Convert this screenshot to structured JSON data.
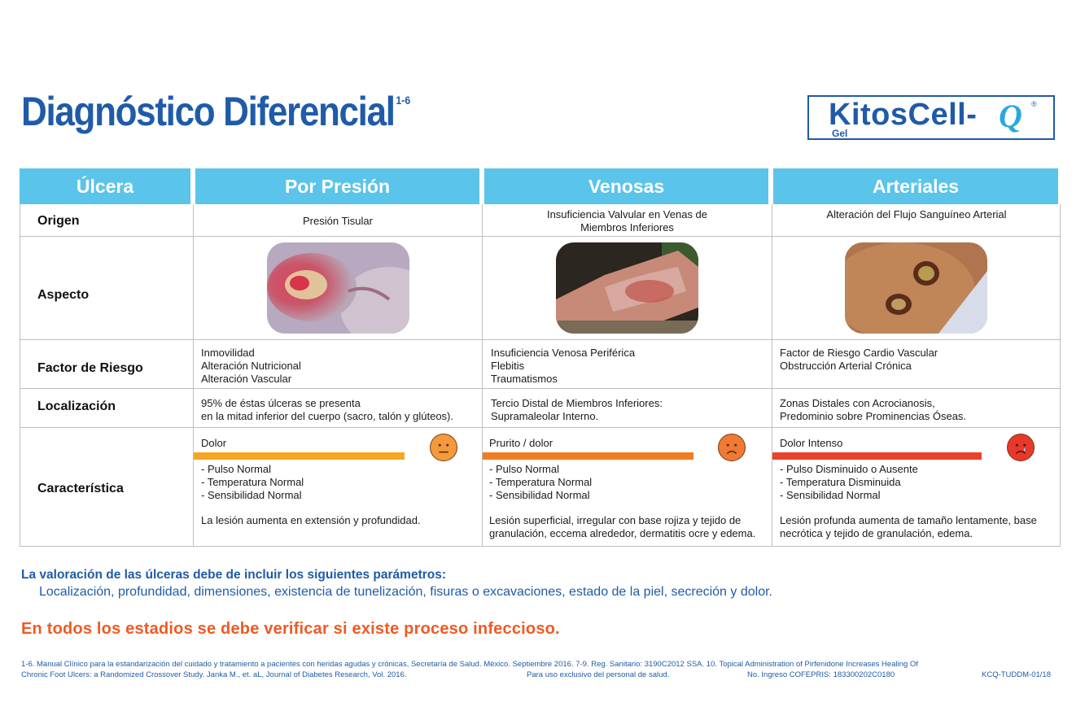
{
  "title": {
    "text": "Diagnóstico Diferencial",
    "sup": "1-6"
  },
  "logo": {
    "brand": "KitosCell-",
    "q": "Q",
    "reg": "®",
    "gel": "Gel"
  },
  "table": {
    "headers": [
      "Úlcera",
      "Por Presión",
      "Venosas",
      "Arteriales"
    ],
    "rows": {
      "origen": {
        "label": "Origen",
        "presion": "Presión Tisular",
        "venosas": [
          "Insuficiencia Valvular en Venas de",
          "Miembros Inferiores"
        ],
        "arteriales": "Alteración del Flujo Sanguíneo Arterial"
      },
      "aspecto": {
        "label": "Aspecto"
      },
      "factor": {
        "label": "Factor de Riesgo",
        "presion": [
          "Inmovilidad",
          "Alteración Nutricional",
          "Alteración Vascular"
        ],
        "venosas": [
          "Insuficiencia Venosa Periférica",
          "Flebitis",
          "Traumatismos"
        ],
        "arteriales": [
          "Factor de Riesgo Cardio Vascular",
          "Obstrucción Arterial Crónica"
        ]
      },
      "localizacion": {
        "label": "Localización",
        "presion": [
          "95% de éstas úlceras se presenta",
          "en la mitad inferior del cuerpo (sacro, talón y glúteos)."
        ],
        "venosas": [
          "Tercio Distal de Miembros Inferiores:",
          "Supramaleolar Interno."
        ],
        "arteriales": [
          "Zonas Distales con Acrocianosis,",
          "Predominio sobre Prominencias Óseas."
        ]
      },
      "caracteristica": {
        "label": "Característica",
        "presion": {
          "pain": "Dolor",
          "bar_color": "#f5a623",
          "signs": [
            "- Pulso Normal",
            "- Temperatura Normal",
            "- Sensibilidad Normal"
          ],
          "desc": [
            "La lesión aumenta en extensión y profundidad."
          ]
        },
        "venosas": {
          "pain": "Prurito / dolor",
          "bar_color": "#f07d23",
          "signs": [
            "- Pulso Normal",
            "- Temperatura Normal",
            "- Sensibilidad Normal"
          ],
          "desc": [
            "Lesión superficial, irregular con base rojiza y tejido de",
            "granulación, eccema alrededor, dermatitis ocre y edema."
          ]
        },
        "arteriales": {
          "pain": "Dolor Intenso",
          "bar_color": "#e8432a",
          "signs": [
            "- Pulso Disminuido o Ausente",
            "- Temperatura Disminuida",
            "- Sensibilidad Normal"
          ],
          "desc": [
            "Lesión profunda aumenta de tamaño lentamente, base",
            "necrótica y tejido de granulación, edema."
          ]
        }
      }
    }
  },
  "valoracion": {
    "title": "La valoración de las úlceras debe de incluir los siguientes parámetros:",
    "body": "Localización, profundidad, dimensiones, existencia de tunelización, fisuras o excavaciones, estado de la piel, secreción y dolor."
  },
  "warning": "En todos los estadios se debe verificar si existe proceso infeccioso.",
  "footer": {
    "line1": "1-6. Manual Clínico para la estandarización del cuidado y tratamiento a pacientes con heridas agudas y crónicas, Secretaría de Salud. México. Septiembre 2016. 7-9. Reg. Sanitario: 3190C2012 SSA. 10. Topical Administration of Pirfenidone Increases Healing Of",
    "line2_left": "Chronic Foot Ulcers: a Randomized  Crossover Study. Janka M., et. aL, Journal of Diabetes Research, Vol. 2016.",
    "line2_mid": "Para uso exclusivo del personal de salud.",
    "line2_cofepris": "No. Ingreso COFEPRIS: 183300202C0180",
    "line2_code": "KCQ-TUDDM-01/18"
  },
  "colors": {
    "accent": "#1f5ba8",
    "header": "#5bc4ea",
    "warning": "#f05a22"
  },
  "icons": [
    "neutral-face-icon",
    "sad-face-icon",
    "crying-face-icon"
  ]
}
